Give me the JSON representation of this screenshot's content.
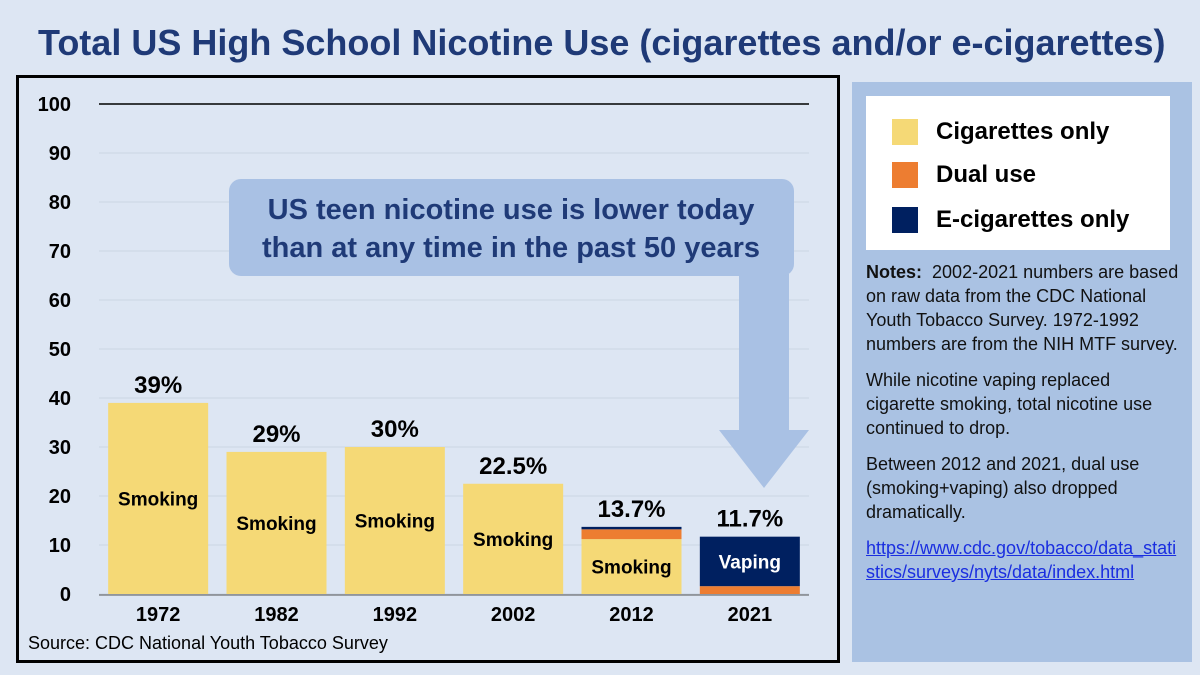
{
  "title": "Total US High School Nicotine Use (cigarettes and/or e-cigarettes)",
  "source": "Source:  CDC National Youth Tobacco Survey",
  "callout": {
    "lines": [
      "US teen nicotine use is lower today",
      "than at any time in the past 50 years"
    ]
  },
  "legend": {
    "items": [
      {
        "label": "Cigarettes only",
        "color": "#f5d976"
      },
      {
        "label": "Dual use",
        "color": "#ed7d31"
      },
      {
        "label": "E-cigarettes only",
        "color": "#002060"
      }
    ]
  },
  "notes": {
    "heading": "Notes:",
    "text1": "2002-2021 numbers are based on raw data from the CDC National Youth Tobacco Survey. 1972-1992 numbers are from the NIH MTF survey.",
    "text2": "While nicotine vaping replaced cigarette smoking, total nicotine use continued to drop.",
    "text3": "Between 2012 and 2021, dual use (smoking+vaping) also dropped dramatically.",
    "link": "https://www.cdc.gov/tobacco/data_statistics/surveys/nyts/data/index.html"
  },
  "chart_data": {
    "type": "bar",
    "stacked": true,
    "categories": [
      "1972",
      "1982",
      "1992",
      "2002",
      "2012",
      "2021"
    ],
    "series": [
      {
        "name": "Cigarettes only",
        "color": "#f5d976",
        "values": [
          39,
          29,
          30,
          22.5,
          11.2,
          0
        ]
      },
      {
        "name": "Dual use",
        "color": "#ed7d31",
        "values": [
          0,
          0,
          0,
          0,
          2.0,
          1.6
        ]
      },
      {
        "name": "E-cigarettes only",
        "color": "#002060",
        "values": [
          0,
          0,
          0,
          0,
          0.5,
          10.1
        ]
      }
    ],
    "total_labels": [
      "39%",
      "29%",
      "30%",
      "22.5%",
      "13.7%",
      "11.7%"
    ],
    "inner_labels": [
      "Smoking",
      "Smoking",
      "Smoking",
      "Smoking",
      "Smoking",
      "Vaping"
    ],
    "ylim": [
      0,
      100
    ],
    "yticks": [
      0,
      10,
      20,
      30,
      40,
      50,
      60,
      70,
      80,
      90,
      100
    ],
    "grid": true
  }
}
